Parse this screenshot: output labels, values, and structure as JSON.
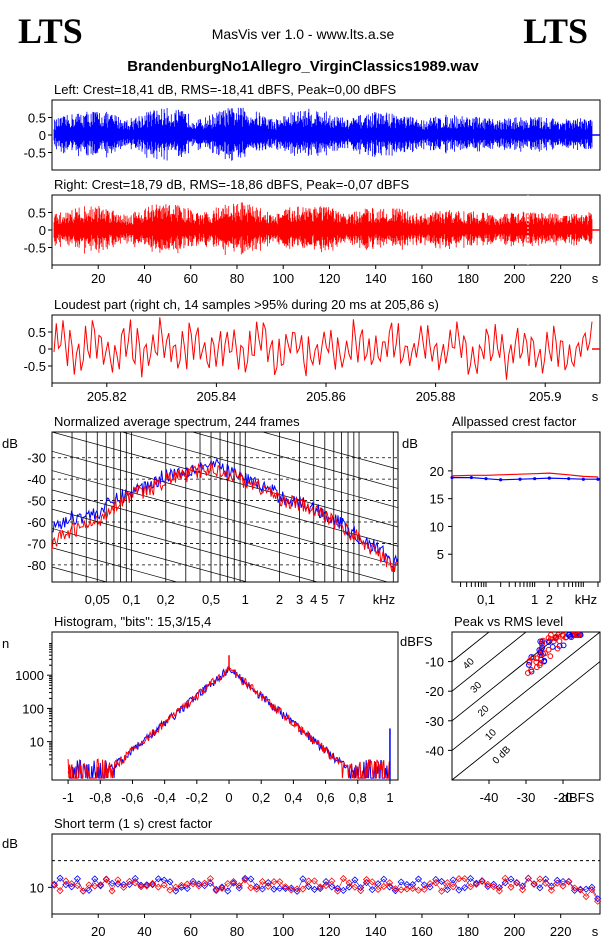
{
  "header": {
    "logo_left": "LTS",
    "logo_right": "LTS",
    "version": "MasVis ver 1.0 - www.lts.a.se",
    "filename": "BrandenburgNo1Allegro_VirginClassics1989.wav"
  },
  "colors": {
    "left": "#0000ff",
    "right": "#ff0000",
    "axis": "#000000"
  },
  "chart_data": [
    {
      "type": "line",
      "title": "Left: Crest=18,41 dB, RMS=-18,41 dBFS, Peak=0,00 dBFS",
      "channel": "left",
      "yticks": [
        "0.5",
        "0",
        "-0.5"
      ],
      "ylim": [
        -1,
        1
      ],
      "xlim": [
        0,
        237
      ],
      "peak": 0.98,
      "typical_amplitude": 0.6
    },
    {
      "type": "line",
      "title": "Right: Crest=18,79 dB, RMS=-18,86 dBFS, Peak=-0,07 dBFS",
      "channel": "right",
      "yticks": [
        "0.5",
        "0",
        "-0.5"
      ],
      "ylim": [
        -1,
        1
      ],
      "xlim": [
        0,
        237
      ],
      "xticks": [
        "20",
        "40",
        "60",
        "80",
        "100",
        "120",
        "140",
        "160",
        "180",
        "200",
        "220"
      ],
      "xunit": "s",
      "marker_x": 205.86
    },
    {
      "type": "line",
      "title": "Loudest part (right ch, 14 samples >95% during 20 ms at 205,86 s)",
      "channel": "right",
      "yticks": [
        "0.5",
        "0",
        "-0.5"
      ],
      "ylim": [
        -1,
        1
      ],
      "xlim": [
        205.81,
        205.91
      ],
      "xticks": [
        "205.82",
        "205.84",
        "205.86",
        "205.88",
        "205.9"
      ],
      "xunit": "s"
    },
    {
      "type": "line",
      "title": "Normalized average spectrum, 244 frames",
      "ylabel": "dB",
      "yticks": [
        "-30",
        "-40",
        "-50",
        "-60",
        "-70",
        "-80"
      ],
      "ylim": [
        -88,
        -18
      ],
      "xscale": "log",
      "xlim": [
        0.02,
        22
      ],
      "xticks": [
        "0,05",
        "0,1",
        "0,2",
        "0,5",
        "1",
        "2",
        "3",
        "4",
        "5",
        "7"
      ],
      "xunit": "kHz",
      "series": [
        {
          "channel": "left",
          "x": [
            0.02,
            0.03,
            0.05,
            0.07,
            0.1,
            0.15,
            0.2,
            0.3,
            0.5,
            0.7,
            1,
            1.5,
            2,
            3,
            5,
            7,
            10,
            15,
            20
          ],
          "y": [
            -63,
            -58,
            -56,
            -50,
            -46,
            -42,
            -38,
            -36,
            -33,
            -36,
            -40,
            -44,
            -48,
            -51,
            -56,
            -61,
            -67,
            -73,
            -79
          ]
        },
        {
          "channel": "right",
          "x": [
            0.02,
            0.03,
            0.05,
            0.07,
            0.1,
            0.15,
            0.2,
            0.3,
            0.5,
            0.7,
            1,
            1.5,
            2,
            3,
            5,
            7,
            10,
            15,
            20
          ],
          "y": [
            -70,
            -64,
            -60,
            -52,
            -47,
            -45,
            -40,
            -38,
            -35,
            -37,
            -41,
            -45,
            -49,
            -52,
            -57,
            -62,
            -68,
            -75,
            -81
          ]
        }
      ]
    },
    {
      "type": "line",
      "title": "Allpassed crest factor",
      "ylabel": "dB",
      "yticks": [
        "20",
        "15",
        "10",
        "5"
      ],
      "ylim": [
        0,
        27
      ],
      "xscale": "log",
      "xlim": [
        0.02,
        22
      ],
      "xticks": [
        "0,1",
        "1",
        "2"
      ],
      "xunit": "kHz",
      "series": [
        {
          "channel": "left",
          "x": [
            0.02,
            0.05,
            0.1,
            0.2,
            0.5,
            1,
            2,
            5,
            10,
            20
          ],
          "y": [
            18.8,
            18.8,
            18.6,
            18.4,
            18.5,
            18.6,
            18.7,
            18.6,
            18.5,
            18.5
          ]
        },
        {
          "channel": "right",
          "x": [
            0.02,
            0.05,
            0.1,
            0.2,
            0.5,
            1,
            2,
            5,
            10,
            20
          ],
          "y": [
            19.1,
            19.2,
            19.2,
            19.3,
            19.4,
            19.5,
            19.6,
            19.3,
            19.0,
            18.9
          ]
        }
      ]
    },
    {
      "type": "line",
      "title": "Histogram, \"bits\": 15,3/15,4",
      "ylabel": "n",
      "yscale": "log",
      "yticks": [
        "1000",
        "100",
        "10"
      ],
      "ylim": [
        0.7,
        20000
      ],
      "xlim": [
        -1.1,
        1.05
      ],
      "xticks": [
        "-1",
        "-0,8",
        "-0,6",
        "-0,4",
        "-0,2",
        "0",
        "0,2",
        "0,4",
        "0,6",
        "0,8",
        "1"
      ],
      "peak_count": 1600,
      "spike_at_zero": 4000
    },
    {
      "type": "scatter",
      "title": "Peak vs RMS level",
      "ylabel": "dBFS",
      "xlabel": "dBFS",
      "xlim": [
        -50,
        -10
      ],
      "ylim": [
        -50,
        0
      ],
      "xticks": [
        "-40",
        "-30",
        "-20"
      ],
      "yticks": [
        "-10",
        "-20",
        "-30",
        "-40"
      ],
      "crest_lines": [
        "40",
        "30",
        "20",
        "10",
        "0 dB"
      ],
      "cluster": {
        "rms_range": [
          -30,
          -15
        ],
        "peak_range": [
          -15,
          -1
        ]
      }
    },
    {
      "type": "scatter",
      "title": "Short term (1 s) crest factor",
      "ylabel": "dB",
      "yticks": [
        "10"
      ],
      "ylim": [
        0,
        30
      ],
      "xlim": [
        0,
        237
      ],
      "xticks": [
        "20",
        "40",
        "60",
        "80",
        "100",
        "120",
        "140",
        "160",
        "180",
        "200",
        "220"
      ],
      "xunit": "s",
      "typical": 11,
      "dashed_reference": 20
    }
  ]
}
